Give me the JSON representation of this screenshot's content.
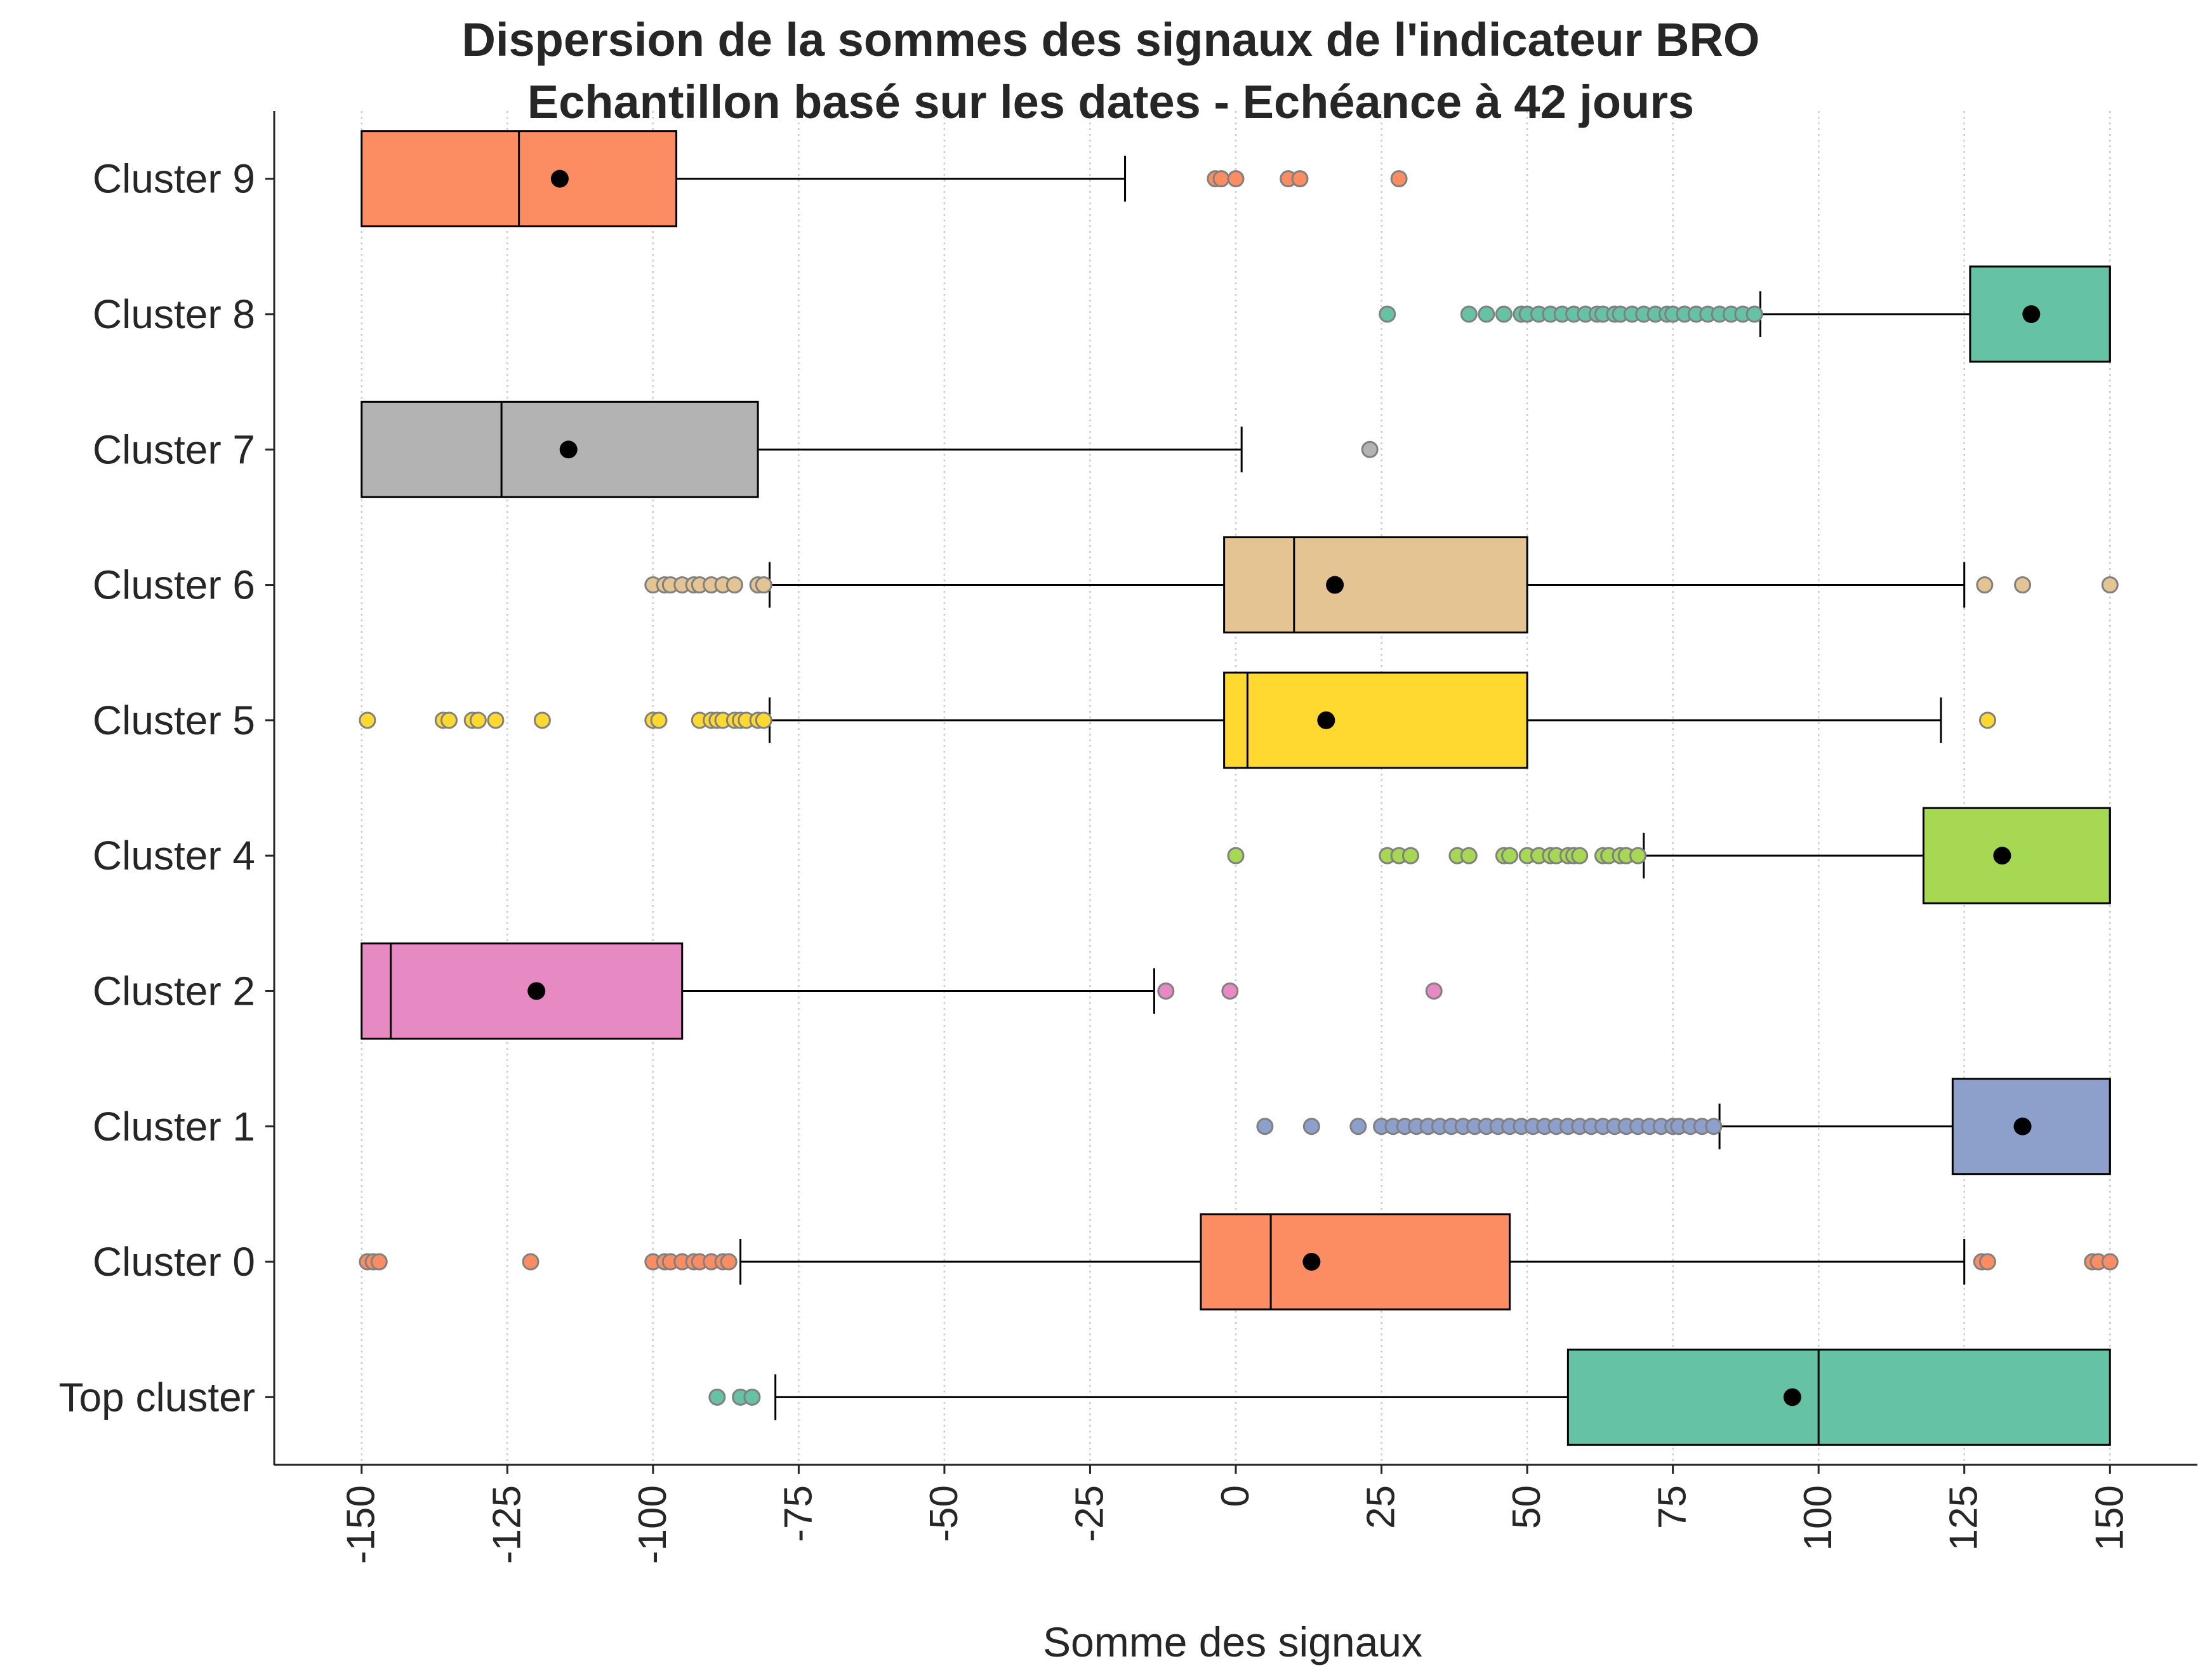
{
  "chart_data": {
    "type": "box",
    "orientation": "horizontal",
    "title_lines": [
      "Dispersion de la sommes des signaux de l'indicateur BRO",
      "Echantillon basé sur les dates - Echéance à 42 jours"
    ],
    "xlabel": "Somme des signaux",
    "ylabel": "",
    "xlim": [
      -165,
      165
    ],
    "xticks": [
      -150,
      -125,
      -100,
      -75,
      -50,
      -25,
      0,
      25,
      50,
      75,
      100,
      125,
      150
    ],
    "xtick_labels": [
      "-150",
      "-125",
      "-100",
      "-75",
      "-50",
      "-25",
      "0",
      "25",
      "50",
      "75",
      "100",
      "125",
      "150"
    ],
    "grid": "vertical-dotted",
    "mean_marker_color": "#000000",
    "series": [
      {
        "name": "Cluster 9",
        "color": "#fc8d62",
        "whisker_low": -150,
        "q1": -150,
        "median": -123,
        "q3": -96,
        "whisker_high": -19,
        "mean": -116,
        "outliers": [
          -3.5,
          -2.5,
          0,
          9,
          11,
          28
        ]
      },
      {
        "name": "Cluster 8",
        "color": "#66c2a5",
        "whisker_low": 90,
        "q1": 126,
        "median": 150,
        "q3": 150,
        "whisker_high": 150,
        "mean": 136.5,
        "outliers": [
          26,
          40,
          43,
          46,
          49,
          50,
          52,
          54,
          56,
          58,
          60,
          62,
          63,
          65,
          66,
          68,
          70,
          72,
          74,
          75,
          77,
          79,
          81,
          83,
          85,
          87,
          89
        ]
      },
      {
        "name": "Cluster 7",
        "color": "#b3b3b3",
        "whisker_low": -150,
        "q1": -150,
        "median": -126,
        "q3": -82,
        "whisker_high": 1,
        "mean": -114.5,
        "outliers": [
          23
        ]
      },
      {
        "name": "Cluster 6",
        "color": "#e5c494",
        "whisker_low": -80,
        "q1": -2,
        "median": 10,
        "q3": 50,
        "whisker_high": 125,
        "mean": 17,
        "outliers": [
          -100,
          -98,
          -97,
          -95,
          -93,
          -92,
          -90,
          -88,
          -86,
          -82,
          -81,
          128.5,
          135,
          150
        ]
      },
      {
        "name": "Cluster 5",
        "color": "#ffd92f",
        "whisker_low": -80,
        "q1": -2,
        "median": 2,
        "q3": 50,
        "whisker_high": 121,
        "mean": 15.5,
        "outliers": [
          -149,
          -136,
          -135,
          -131,
          -130,
          -127,
          -119,
          -100,
          -99,
          -92,
          -90,
          -89,
          -88,
          -86,
          -85,
          -84,
          -82,
          -81,
          129
        ]
      },
      {
        "name": "Cluster 4",
        "color": "#a6d854",
        "whisker_low": 70,
        "q1": 118,
        "median": 150,
        "q3": 150,
        "whisker_high": 150,
        "mean": 131.5,
        "outliers": [
          0,
          26,
          28,
          30,
          38,
          40,
          46,
          47,
          50,
          52,
          54,
          55,
          57,
          58,
          59,
          63,
          64,
          66,
          67,
          69
        ]
      },
      {
        "name": "Cluster 2",
        "color": "#e78ac3",
        "whisker_low": -150,
        "q1": -150,
        "median": -145,
        "q3": -95,
        "whisker_high": -14,
        "mean": -120,
        "outliers": [
          -12,
          -1,
          34
        ]
      },
      {
        "name": "Cluster 1",
        "color": "#8da0cb",
        "whisker_low": 83,
        "q1": 123,
        "median": 150,
        "q3": 150,
        "whisker_high": 150,
        "mean": 135,
        "outliers": [
          5,
          13,
          21,
          25,
          27,
          29,
          31,
          33,
          35,
          37,
          39,
          41,
          43,
          45,
          47,
          49,
          51,
          53,
          55,
          57,
          59,
          61,
          63,
          65,
          67,
          69,
          71,
          73,
          75,
          76,
          78,
          80,
          82
        ]
      },
      {
        "name": "Cluster 0",
        "color": "#fc8d62",
        "whisker_low": -85,
        "q1": -6,
        "median": 6,
        "q3": 47,
        "whisker_high": 125,
        "mean": 13,
        "outliers": [
          -149,
          -148,
          -147,
          -121,
          -100,
          -98,
          -97,
          -95,
          -93,
          -92,
          -90,
          -88,
          -87,
          128,
          129,
          147,
          148,
          150
        ]
      },
      {
        "name": "Top cluster",
        "color": "#66c2a5",
        "whisker_low": -79,
        "q1": 57,
        "median": 100,
        "q3": 150,
        "whisker_high": 150,
        "mean": 95.5,
        "outliers": [
          -89,
          -85,
          -83
        ]
      }
    ]
  }
}
